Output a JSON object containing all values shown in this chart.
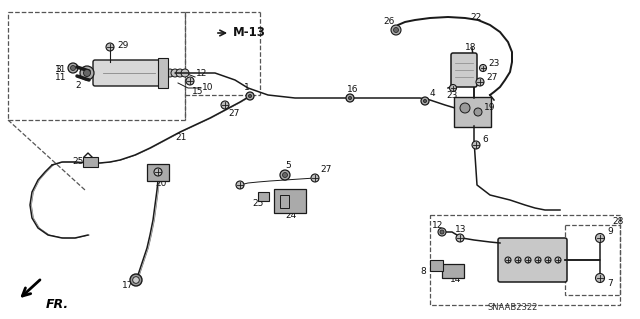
{
  "bg_color": "#ffffff",
  "line_color": "#1a1a1a",
  "diagram_code": "SNAAB2322",
  "arrow_label": "FR.",
  "M13_label": "M-13",
  "dashed_line": "#555555",
  "part_gray": "#888888",
  "part_light": "#cccccc",
  "lw_main": 1.1,
  "lw_thin": 0.7,
  "lw_thick": 1.8,
  "fs_label": 6.5,
  "fs_M13": 8.0
}
